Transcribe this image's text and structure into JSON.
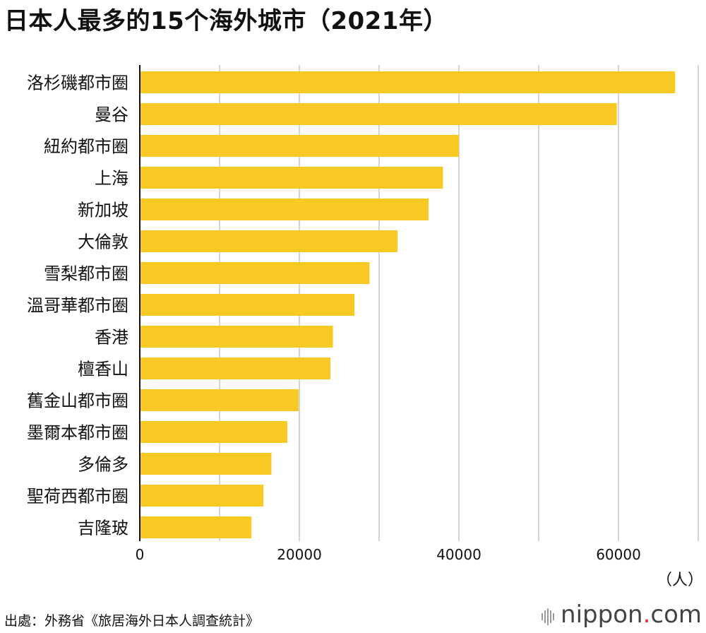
{
  "title": "日本人最多的15个海外城市（2021年）",
  "source": "出處：外務省《旅居海外日本人調查統計》",
  "brand": {
    "name": "nippon",
    "dot": ".",
    "suffix": "com"
  },
  "colors": {
    "bar": "#f8c922",
    "grid": "#d4d4d4",
    "axis": "#111111"
  },
  "chart_data": {
    "type": "bar",
    "orientation": "horizontal",
    "title": "日本人最多的15个海外城市（2021年）",
    "unit": "（人）",
    "xlim": [
      0,
      70000
    ],
    "ticks": [
      0,
      20000,
      40000,
      60000
    ],
    "grid": true,
    "categories": [
      "洛杉磯都市圈",
      "曼谷",
      "紐約都市圈",
      "上海",
      "新加坡",
      "大倫敦",
      "雪梨都市圈",
      "溫哥華都市圈",
      "香港",
      "檀香山",
      "舊金山都市圈",
      "墨爾本都市圈",
      "多倫多",
      "聖荷西都市圈",
      "吉隆玻"
    ],
    "values": [
      67100,
      59800,
      40000,
      38000,
      36200,
      32300,
      28800,
      26900,
      24200,
      23900,
      19900,
      18500,
      16500,
      15500,
      14000
    ]
  }
}
